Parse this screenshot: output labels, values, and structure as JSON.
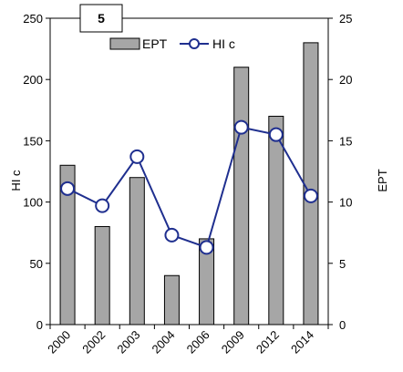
{
  "chart_data": {
    "type": "bar+line",
    "panel_label": "5",
    "categories": [
      "2000",
      "2002",
      "2003",
      "2004",
      "2006",
      "2009",
      "2012",
      "2014"
    ],
    "left_axis": {
      "label": "HI c",
      "ylim": [
        0,
        250
      ],
      "ticks": [
        0,
        50,
        100,
        150,
        200,
        250
      ]
    },
    "right_axis": {
      "label": "EPT",
      "ylim": [
        0,
        25
      ],
      "ticks": [
        0,
        5,
        10,
        15,
        20,
        25
      ]
    },
    "series": [
      {
        "name": "EPT",
        "type": "bar",
        "axis": "right",
        "color": "#a6a6a6",
        "values": [
          13,
          8,
          12,
          4,
          7,
          21,
          17,
          23
        ]
      },
      {
        "name": "HI c",
        "type": "line",
        "axis": "left",
        "color": "#1f2f8f",
        "values": [
          111,
          97,
          137,
          73,
          63,
          161,
          155,
          105
        ]
      }
    ],
    "legend": {
      "position": "top"
    },
    "grid": false
  }
}
